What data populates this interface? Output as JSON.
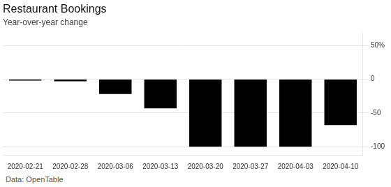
{
  "chart_data": {
    "type": "bar",
    "title": "Restaurant Bookings",
    "subtitle": "Year-over-year change",
    "source": "Data: OpenTable",
    "categories": [
      "2020-02-21",
      "2020-02-28",
      "2020-03-06",
      "2020-03-13",
      "2020-03-20",
      "2020-03-27",
      "2020-04-03",
      "2020-04-10"
    ],
    "values": [
      -2,
      -3,
      -22,
      -43,
      -100,
      -100,
      -100,
      -68
    ],
    "color": "#000000",
    "ylim": [
      -112,
      68
    ],
    "yticks": [
      {
        "value": 50,
        "label": "50%"
      },
      0,
      -50,
      -100
    ],
    "grid": true
  }
}
